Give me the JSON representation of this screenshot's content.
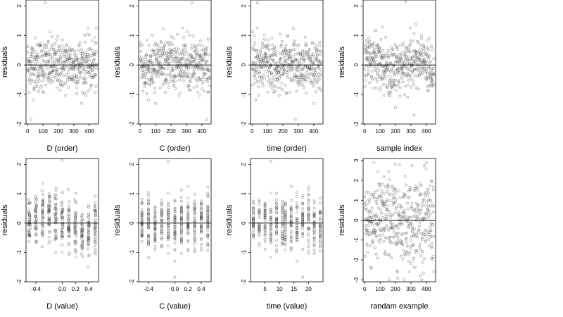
{
  "chart_data": [
    {
      "type": "scatter",
      "xlabel": "D (order)",
      "ylabel": "residuals",
      "xlim": [
        -10,
        460
      ],
      "ylim": [
        -2,
        2.2
      ],
      "xticks": [
        0,
        100,
        200,
        300,
        400
      ],
      "yticks": [
        -2,
        -1,
        0,
        1,
        2
      ],
      "hline": 0,
      "series": [
        {
          "x": "sequence 1..450",
          "y_distribution": "residuals roughly in [-1, 1], outlier at (115, 2.1), low outlier near (20, -1.8)"
        }
      ]
    },
    {
      "type": "scatter",
      "xlabel": "C (order)",
      "ylabel": "residuals",
      "xlim": [
        -10,
        460
      ],
      "ylim": [
        -2,
        2.2
      ],
      "xticks": [
        0,
        100,
        200,
        300,
        400
      ],
      "yticks": [
        -2,
        -1,
        0,
        1,
        2
      ],
      "hline": 0
    },
    {
      "type": "scatter",
      "xlabel": "time (order)",
      "ylabel": "residuals",
      "xlim": [
        -10,
        460
      ],
      "ylim": [
        -2,
        2.2
      ],
      "xticks": [
        0,
        100,
        200,
        300,
        400
      ],
      "yticks": [
        -2,
        -1,
        0,
        1,
        2
      ],
      "hline": 0
    },
    {
      "type": "scatter",
      "xlabel": "sample index",
      "ylabel": "residuals",
      "xlim": [
        -10,
        460
      ],
      "ylim": [
        -2,
        2.2
      ],
      "xticks": [
        0,
        100,
        200,
        300,
        400
      ],
      "yticks": [
        -2,
        -1,
        0,
        1,
        2
      ],
      "hline": 0
    },
    {
      "type": "scatter",
      "xlabel": "D (value)",
      "ylabel": "residuals",
      "xlim": [
        -0.55,
        0.55
      ],
      "ylim": [
        -2,
        2.2
      ],
      "xticks": [
        -0.4,
        0.0,
        0.2,
        0.4
      ],
      "xtick_labels": [
        "-0.4",
        "0.0",
        "0.2",
        "0.4"
      ],
      "yticks": [
        -2,
        -1,
        0,
        1,
        2
      ],
      "hline": 0
    },
    {
      "type": "scatter",
      "xlabel": "C (value)",
      "ylabel": "residuals",
      "xlim": [
        -0.55,
        0.55
      ],
      "ylim": [
        -2,
        2.2
      ],
      "xticks": [
        -0.4,
        0.0,
        0.2,
        0.4
      ],
      "xtick_labels": [
        "-0.4",
        "0.0",
        "0.2",
        "0.4"
      ],
      "yticks": [
        -2,
        -1,
        0,
        1,
        2
      ],
      "hline": 0
    },
    {
      "type": "scatter",
      "xlabel": "time (value)",
      "ylabel": "residuals",
      "xlim": [
        0,
        25
      ],
      "ylim": [
        -2,
        2.2
      ],
      "xticks": [
        5,
        10,
        15,
        20
      ],
      "yticks": [
        -2,
        -1,
        0,
        1,
        2
      ],
      "hline": 0
    },
    {
      "type": "scatter",
      "xlabel": "randam example",
      "ylabel": "residuals",
      "xlim": [
        -10,
        460
      ],
      "ylim": [
        -3.1,
        3.1
      ],
      "xticks": [
        0,
        100,
        200,
        300,
        400
      ],
      "yticks": [
        -3,
        -2,
        -1,
        0,
        1,
        2,
        3
      ],
      "hline": 0
    }
  ]
}
